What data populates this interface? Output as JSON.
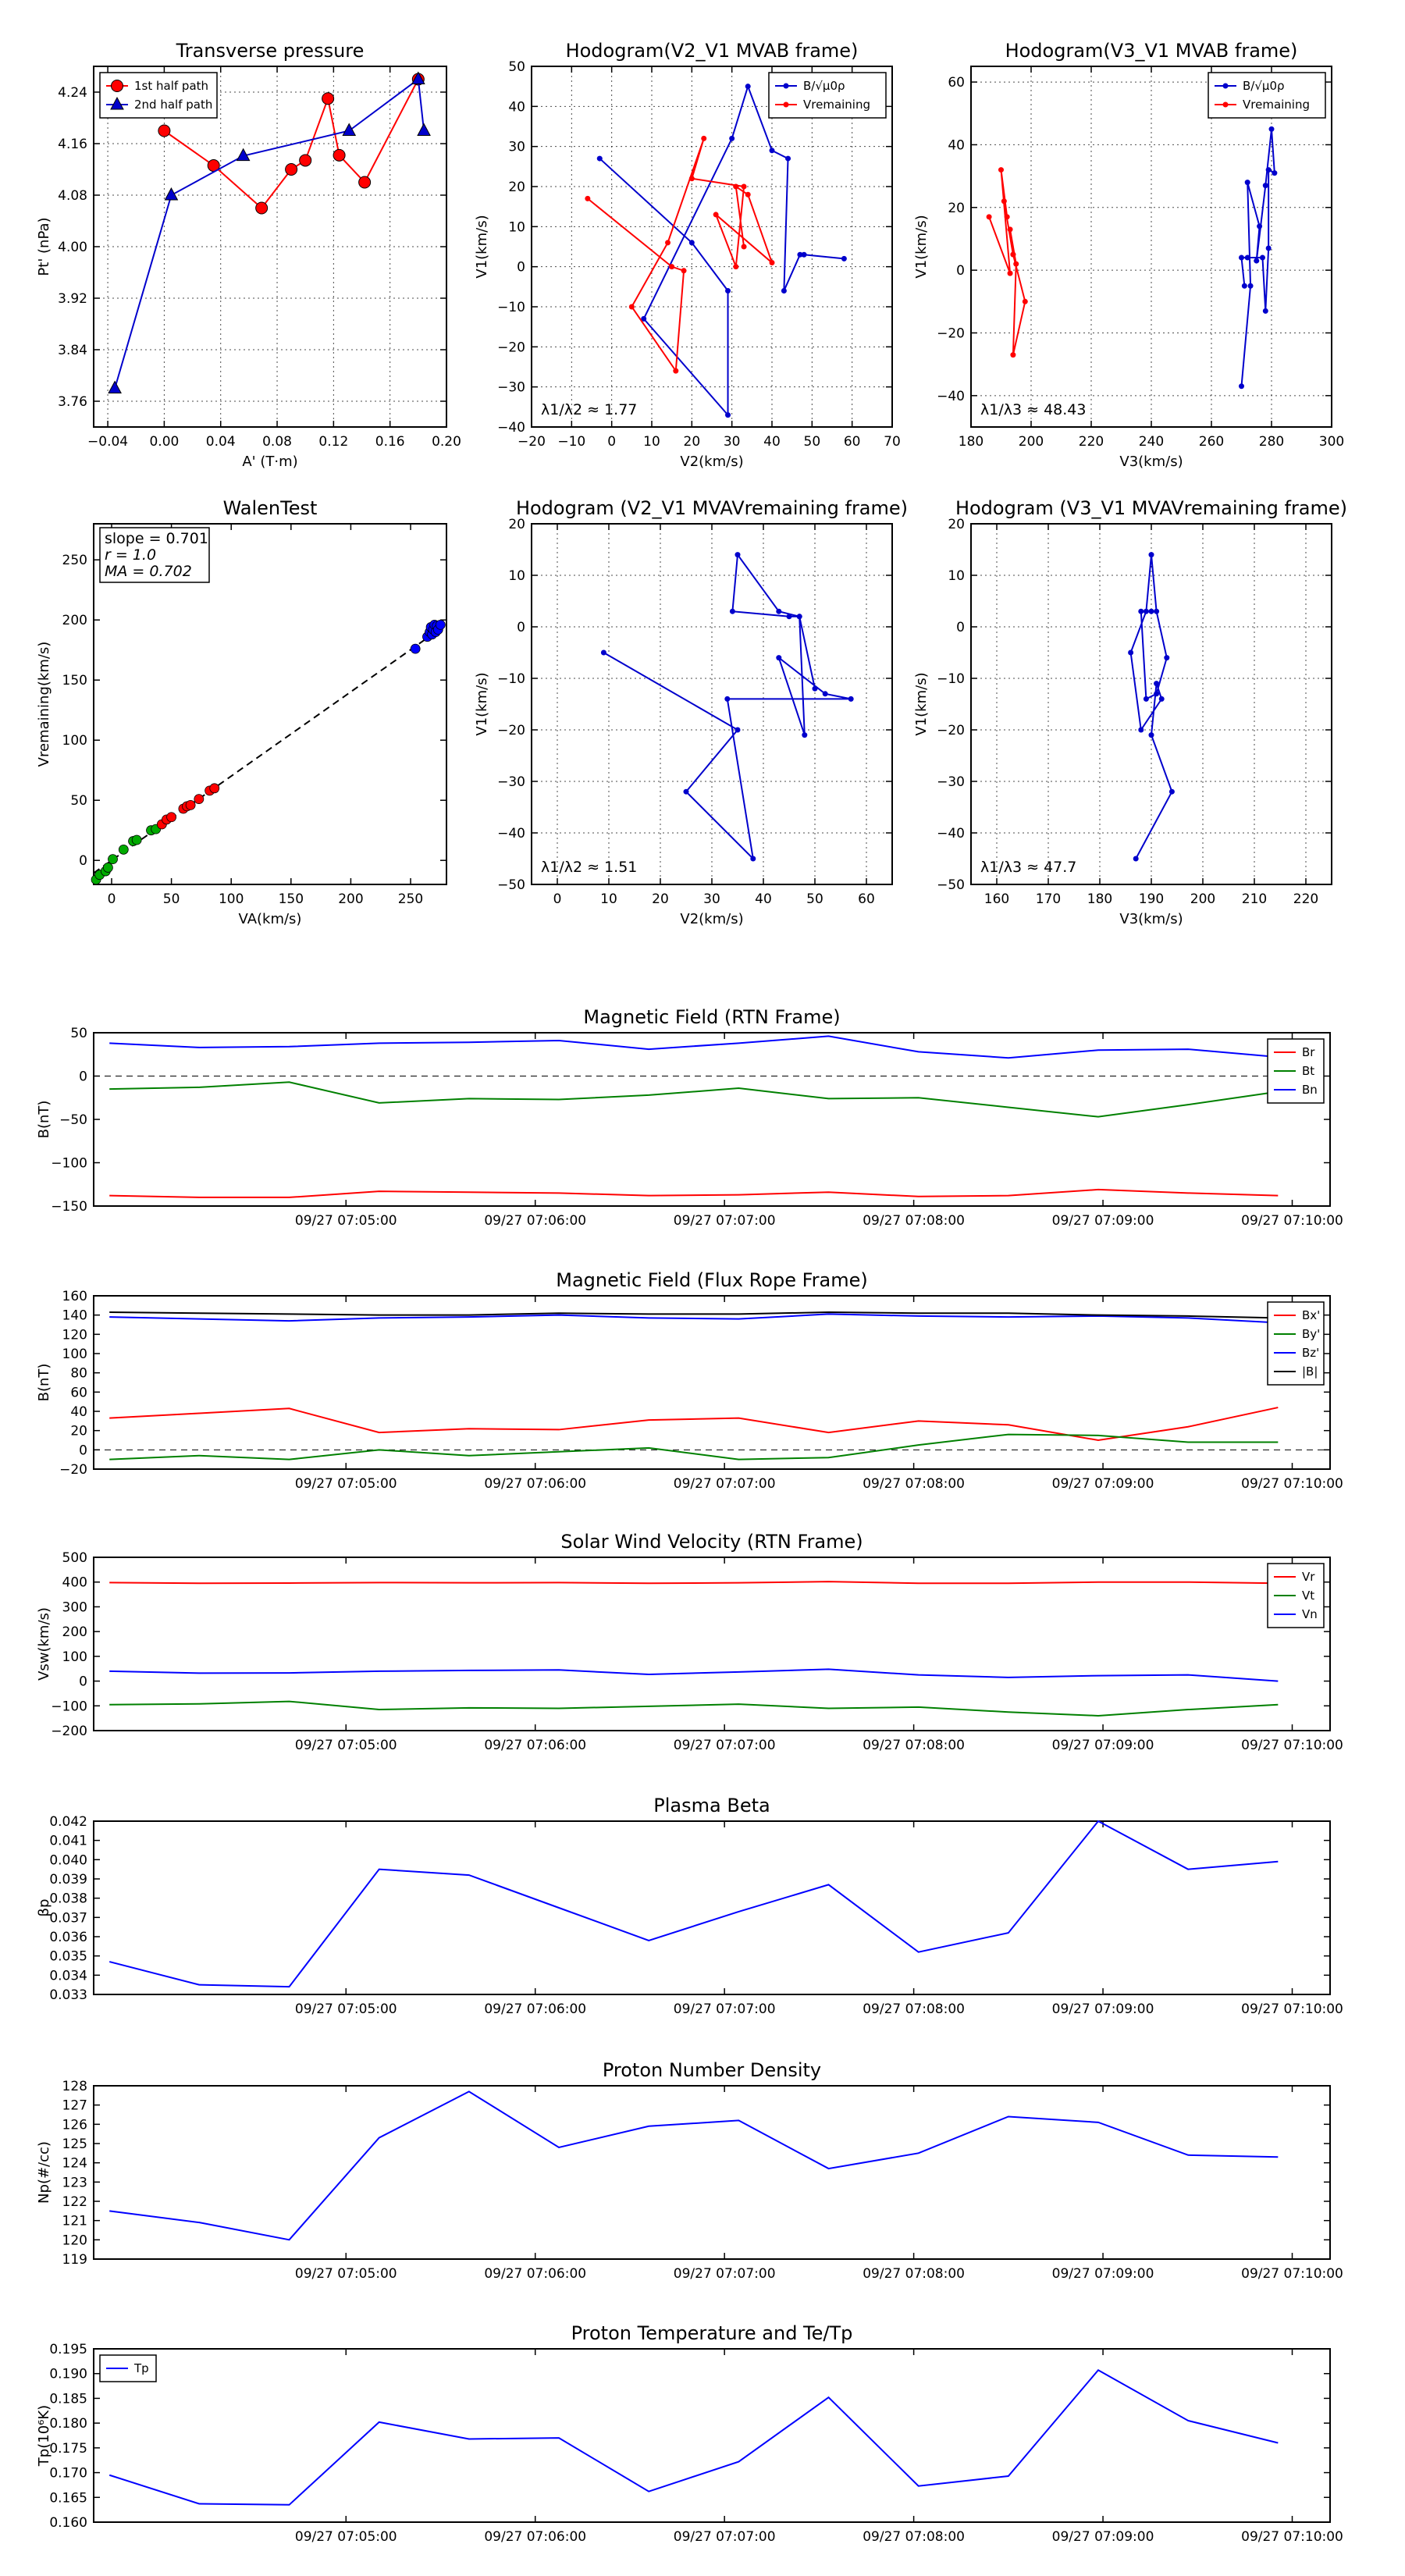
{
  "chart_data": [
    {
      "id": "p_tp",
      "type": "scatter",
      "title": "Transverse pressure",
      "xlabel": "A' (T·m)",
      "ylabel": "Pt' (nPa)",
      "xlim": [
        -0.05,
        0.2
      ],
      "ylim": [
        3.72,
        4.28
      ],
      "xticks": [
        -0.04,
        0.0,
        0.04,
        0.08,
        0.12,
        0.16,
        0.2
      ],
      "xticklabels": [
        "−0.04",
        "0.00",
        "0.04",
        "0.08",
        "0.12",
        "0.16",
        "0.20"
      ],
      "yticks": [
        3.76,
        3.84,
        3.92,
        4.0,
        4.08,
        4.16,
        4.24
      ],
      "yticklabels": [
        "3.76",
        "3.84",
        "3.92",
        "4.00",
        "4.08",
        "4.16",
        "4.24"
      ],
      "grid": true,
      "legend_loc": "upper-left",
      "series": [
        {
          "name": "1st half path",
          "color": "#ff0000",
          "marker": "circle",
          "x": [
            0.0,
            0.035,
            0.069,
            0.09,
            0.1,
            0.116,
            0.124,
            0.142,
            0.18
          ],
          "y": [
            4.18,
            4.126,
            4.06,
            4.12,
            4.134,
            4.23,
            4.142,
            4.1,
            4.26
          ]
        },
        {
          "name": "2nd half path",
          "color": "#0000cc",
          "marker": "triangle",
          "x": [
            -0.035,
            0.005,
            0.056,
            0.131,
            0.18,
            0.184
          ],
          "y": [
            3.78,
            4.08,
            4.141,
            4.18,
            4.26,
            4.18
          ]
        }
      ]
    },
    {
      "id": "p_h1",
      "type": "line",
      "title": "Hodogram(V2_V1 MVAB frame)",
      "xlabel": "V2(km/s)",
      "ylabel": "V1(km/s)",
      "xlim": [
        -20,
        70
      ],
      "ylim": [
        -40,
        50
      ],
      "xticks": [
        -20,
        -10,
        0,
        10,
        20,
        30,
        40,
        50,
        60,
        70
      ],
      "xticklabels": [
        "−20",
        "−10",
        "0",
        "10",
        "20",
        "30",
        "40",
        "50",
        "60",
        "70"
      ],
      "yticks": [
        -40,
        -30,
        -20,
        -10,
        0,
        10,
        20,
        30,
        40,
        50
      ],
      "yticklabels": [
        "−40",
        "−30",
        "−20",
        "−10",
        "0",
        "10",
        "20",
        "30",
        "40",
        "50"
      ],
      "grid": true,
      "legend_loc": "upper-right",
      "annotation": "λ1/λ2 ≈ 1.77",
      "series": [
        {
          "name": "B/√μ0ρ",
          "color": "#0000cc",
          "x": [
            -3,
            20,
            29,
            29,
            8,
            30,
            34,
            40,
            44,
            43,
            47,
            48,
            58
          ],
          "y": [
            27,
            6,
            -6,
            -37,
            -13,
            32,
            45,
            29,
            27,
            -6,
            3,
            3,
            2
          ]
        },
        {
          "name": "Vremaining",
          "color": "#ff0000",
          "x": [
            -6,
            15,
            18,
            16,
            5,
            14,
            23,
            20,
            33,
            31,
            26,
            40,
            34,
            31,
            33
          ],
          "y": [
            17,
            0,
            -1,
            -26,
            -10,
            6,
            32,
            22,
            20,
            0,
            13,
            1,
            18,
            20,
            5
          ]
        }
      ]
    },
    {
      "id": "p_h2",
      "type": "line",
      "title": "Hodogram(V3_V1 MVAB frame)",
      "xlabel": "V3(km/s)",
      "ylabel": "V1(km/s)",
      "xlim": [
        180,
        300
      ],
      "ylim": [
        -50,
        65
      ],
      "xticks": [
        180,
        200,
        220,
        240,
        260,
        280,
        300
      ],
      "xticklabels": [
        "180",
        "200",
        "220",
        "240",
        "260",
        "280",
        "300"
      ],
      "yticks": [
        -40,
        -20,
        0,
        20,
        40,
        60
      ],
      "yticklabels": [
        "−40",
        "−20",
        "0",
        "20",
        "40",
        "60"
      ],
      "grid": true,
      "legend_loc": "upper-right",
      "annotation": "λ1/λ3 ≈ 48.43",
      "series": [
        {
          "name": "B/√μ0ρ",
          "color": "#0000cc",
          "x": [
            270,
            273,
            272,
            276,
            275,
            278,
            280,
            281,
            279,
            279,
            278,
            277,
            272,
            270,
            271
          ],
          "y": [
            -37,
            -5,
            28,
            14,
            3,
            27,
            45,
            31,
            32,
            7,
            -13,
            4,
            4,
            4,
            -5
          ]
        },
        {
          "name": "Vremaining",
          "color": "#ff0000",
          "x": [
            186,
            193,
            190,
            192,
            191,
            194,
            193,
            195,
            194,
            198,
            194
          ],
          "y": [
            17,
            -1,
            32,
            17,
            22,
            5,
            13,
            2,
            -27,
            -10,
            5
          ]
        }
      ]
    },
    {
      "id": "p_walen",
      "type": "scatter",
      "title": "WalenTest",
      "xlabel": "VA(km/s)",
      "ylabel": "Vremaining(km/s)",
      "xlim": [
        -15,
        280
      ],
      "ylim": [
        -20,
        280
      ],
      "xticks": [
        0,
        50,
        100,
        150,
        200,
        250
      ],
      "xticklabels": [
        "0",
        "50",
        "100",
        "150",
        "200",
        "250"
      ],
      "yticks": [
        0,
        50,
        100,
        150,
        200,
        250
      ],
      "yticklabels": [
        "0",
        "50",
        "100",
        "150",
        "200",
        "250"
      ],
      "grid": false,
      "slope_text": "slope = 0.701",
      "r_text": "r = 1.0",
      "ma_text": "MA = 0.702",
      "fit": {
        "slope": 0.701,
        "x": [
          -15,
          265
        ]
      },
      "series": [
        {
          "name": "green",
          "color": "#00aa00",
          "x": [
            -13,
            -10,
            -5,
            -3,
            1,
            10,
            18,
            21,
            33,
            37
          ],
          "y": [
            -16,
            -12,
            -9,
            -6,
            1,
            9,
            16,
            17,
            25,
            26
          ]
        },
        {
          "name": "red",
          "color": "#ff0000",
          "x": [
            42,
            46,
            50,
            60,
            63,
            66,
            73,
            82,
            86
          ],
          "y": [
            30,
            34,
            36,
            43,
            45,
            46,
            51,
            58,
            60
          ]
        },
        {
          "name": "blue",
          "color": "#0000ff",
          "x": [
            254,
            264,
            266,
            267,
            268,
            269,
            270,
            271,
            272,
            273,
            275
          ],
          "y": [
            176,
            186,
            190,
            194,
            188,
            192,
            196,
            190,
            195,
            192,
            196
          ]
        }
      ]
    },
    {
      "id": "p_h3",
      "type": "line",
      "title": "Hodogram (V2_V1 MVAVremaining frame)",
      "xlabel": "V2(km/s)",
      "ylabel": "V1(km/s)",
      "xlim": [
        -5,
        65
      ],
      "ylim": [
        -50,
        20
      ],
      "xticks": [
        0,
        10,
        20,
        30,
        40,
        50,
        60
      ],
      "xticklabels": [
        "0",
        "10",
        "20",
        "30",
        "40",
        "50",
        "60"
      ],
      "yticks": [
        -50,
        -40,
        -30,
        -20,
        -10,
        0,
        10,
        20
      ],
      "yticklabels": [
        "−50",
        "−40",
        "−30",
        "−20",
        "−10",
        "0",
        "10",
        "20"
      ],
      "grid": true,
      "annotation": "λ1/λ2 ≈ 1.51",
      "series": [
        {
          "name": "Vremaining",
          "color": "#0000cc",
          "x": [
            9,
            35,
            25,
            38,
            33,
            57,
            52,
            43,
            48,
            47,
            45,
            34,
            35,
            43,
            47,
            50
          ],
          "y": [
            -5,
            -20,
            -32,
            -45,
            -14,
            -14,
            -13,
            -6,
            -21,
            2,
            2,
            3,
            14,
            3,
            2,
            -12
          ]
        }
      ]
    },
    {
      "id": "p_h4",
      "type": "line",
      "title": "Hodogram (V3_V1 MVAVremaining frame)",
      "xlabel": "V3(km/s)",
      "ylabel": "V1(km/s)",
      "xlim": [
        155,
        225
      ],
      "ylim": [
        -50,
        20
      ],
      "xticks": [
        160,
        170,
        180,
        190,
        200,
        210,
        220
      ],
      "xticklabels": [
        "160",
        "170",
        "180",
        "190",
        "200",
        "210",
        "220"
      ],
      "yticks": [
        -50,
        -40,
        -30,
        -20,
        -10,
        0,
        10,
        20
      ],
      "yticklabels": [
        "−50",
        "−40",
        "−30",
        "−20",
        "−10",
        "0",
        "10",
        "20"
      ],
      "grid": true,
      "annotation": "λ1/λ3 ≈ 47.7",
      "series": [
        {
          "name": "Vremaining",
          "color": "#0000cc",
          "x": [
            187,
            194,
            190,
            191,
            192,
            188,
            186,
            189,
            190,
            191,
            193,
            191,
            189,
            188,
            190
          ],
          "y": [
            -45,
            -32,
            -21,
            -11,
            -14,
            -20,
            -5,
            3,
            14,
            3,
            -6,
            -13,
            -14,
            3,
            3
          ]
        }
      ]
    },
    {
      "id": "ts_b",
      "type": "line",
      "title": "Magnetic Field (RTN Frame)",
      "ylabel": "B(nT)",
      "ylim": [
        -150,
        50
      ],
      "yticks": [
        -150,
        -100,
        -50,
        0,
        50
      ],
      "yticklabels": [
        "−150",
        "−100",
        "−50",
        "0",
        "50"
      ],
      "zero_line": true,
      "legend_loc": "upper-right",
      "series": [
        {
          "name": "Br",
          "color": "#ff0000",
          "values": [
            -138,
            -140,
            -140,
            -133,
            -134,
            -135,
            -138,
            -137,
            -134,
            -139,
            -138,
            -131,
            -135,
            -138
          ]
        },
        {
          "name": "Bt",
          "color": "#008000",
          "values": [
            -15,
            -13,
            -7,
            -31,
            -26,
            -27,
            -22,
            -14,
            -26,
            -25,
            -36,
            -47,
            -33,
            -18
          ]
        },
        {
          "name": "Bn",
          "color": "#0000ff",
          "values": [
            38,
            33,
            34,
            38,
            39,
            41,
            31,
            38,
            46,
            28,
            21,
            30,
            31,
            22
          ]
        }
      ]
    },
    {
      "id": "ts_bfr",
      "type": "line",
      "title": "Magnetic Field (Flux Rope Frame)",
      "ylabel": "B(nT)",
      "ylim": [
        -20,
        160
      ],
      "yticks": [
        -20,
        0,
        20,
        40,
        60,
        80,
        100,
        120,
        140,
        160
      ],
      "yticklabels": [
        "−20",
        "0",
        "20",
        "40",
        "60",
        "80",
        "100",
        "120",
        "140",
        "160"
      ],
      "zero_line": true,
      "legend_loc": "upper-right",
      "series": [
        {
          "name": "Bx'",
          "color": "#ff0000",
          "values": [
            33,
            38,
            43,
            18,
            22,
            21,
            31,
            33,
            18,
            30,
            26,
            10,
            24,
            44
          ]
        },
        {
          "name": "By'",
          "color": "#008000",
          "values": [
            -10,
            -6,
            -10,
            0,
            -6,
            -2,
            2,
            -10,
            -8,
            5,
            16,
            15,
            8,
            8
          ]
        },
        {
          "name": "Bz'",
          "color": "#0000ff",
          "values": [
            138,
            136,
            134,
            137,
            138,
            140,
            137,
            136,
            141,
            139,
            138,
            139,
            137,
            132
          ]
        },
        {
          "name": "|B|",
          "color": "#000000",
          "values": [
            143,
            142,
            141,
            140,
            140,
            142,
            141,
            141,
            143,
            142,
            142,
            140,
            139,
            137
          ]
        }
      ]
    },
    {
      "id": "ts_v",
      "type": "line",
      "title": "Solar Wind Velocity (RTN Frame)",
      "ylabel": "Vsw(km/s)",
      "ylim": [
        -200,
        500
      ],
      "yticks": [
        -200,
        -100,
        0,
        100,
        200,
        300,
        400,
        500
      ],
      "yticklabels": [
        "−200",
        "−100",
        "0",
        "100",
        "200",
        "300",
        "400",
        "500"
      ],
      "zero_line": false,
      "legend_loc": "upper-right",
      "series": [
        {
          "name": "Vr",
          "color": "#ff0000",
          "values": [
            398,
            395,
            396,
            398,
            397,
            398,
            395,
            397,
            402,
            395,
            395,
            400,
            400,
            395
          ]
        },
        {
          "name": "Vt",
          "color": "#008000",
          "values": [
            -95,
            -92,
            -82,
            -115,
            -108,
            -110,
            -102,
            -93,
            -110,
            -105,
            -125,
            -140,
            -115,
            -95
          ]
        },
        {
          "name": "Vn",
          "color": "#0000ff",
          "values": [
            40,
            32,
            33,
            40,
            43,
            45,
            27,
            37,
            48,
            25,
            15,
            22,
            25,
            0
          ]
        }
      ]
    },
    {
      "id": "ts_beta",
      "type": "line",
      "title": "Plasma Beta",
      "ylabel": "βp",
      "ylim": [
        0.033,
        0.042
      ],
      "yticks": [
        0.033,
        0.034,
        0.035,
        0.036,
        0.037,
        0.038,
        0.039,
        0.04,
        0.041,
        0.042
      ],
      "yticklabels": [
        "0.033",
        "0.034",
        "0.035",
        "0.036",
        "0.037",
        "0.038",
        "0.039",
        "0.040",
        "0.041",
        "0.042"
      ],
      "zero_line": false,
      "series": [
        {
          "name": "βp",
          "color": "#0000ff",
          "values": [
            0.0347,
            0.0335,
            0.0334,
            0.0395,
            0.0392,
            0.0375,
            0.0358,
            0.0373,
            0.0387,
            0.0352,
            0.0362,
            0.042,
            0.0395,
            0.0399
          ]
        }
      ]
    },
    {
      "id": "ts_np",
      "type": "line",
      "title": "Proton Number Density",
      "ylabel": "Np(#/cc)",
      "ylim": [
        119,
        128
      ],
      "yticks": [
        119,
        120,
        121,
        122,
        123,
        124,
        125,
        126,
        127,
        128
      ],
      "yticklabels": [
        "119",
        "120",
        "121",
        "122",
        "123",
        "124",
        "125",
        "126",
        "127",
        "128"
      ],
      "zero_line": false,
      "series": [
        {
          "name": "Np",
          "color": "#0000ff",
          "values": [
            121.5,
            120.9,
            120.0,
            125.3,
            127.7,
            124.8,
            125.9,
            126.2,
            123.7,
            124.5,
            126.4,
            126.1,
            124.4,
            124.3
          ]
        }
      ]
    },
    {
      "id": "ts_tp",
      "type": "line",
      "title": "Proton Temperature and Te/Tp",
      "ylabel": "Tp(10⁶K)",
      "ylim": [
        0.16,
        0.195
      ],
      "yticks": [
        0.16,
        0.165,
        0.17,
        0.175,
        0.18,
        0.185,
        0.19,
        0.195
      ],
      "yticklabels": [
        "0.160",
        "0.165",
        "0.170",
        "0.175",
        "0.180",
        "0.185",
        "0.190",
        "0.195"
      ],
      "zero_line": false,
      "legend_loc": "upper-left",
      "series": [
        {
          "name": "Tp",
          "color": "#0000ff",
          "values": [
            0.1695,
            0.1637,
            0.1635,
            0.1802,
            0.1768,
            0.177,
            0.1662,
            0.1722,
            0.1852,
            0.1673,
            0.1693,
            0.1907,
            0.1805,
            0.176
          ]
        }
      ]
    }
  ],
  "time_axis": {
    "n_points": 14,
    "start_s": 225,
    "step_s": 28.5,
    "tick_seconds": [
      300,
      360,
      420,
      480,
      540,
      600
    ],
    "tick_labels": [
      "09/27 07:05:00",
      "09/27 07:06:00",
      "09/27 07:07:00",
      "09/27 07:08:00",
      "09/27 07:09:00",
      "09/27 07:10:00"
    ]
  }
}
